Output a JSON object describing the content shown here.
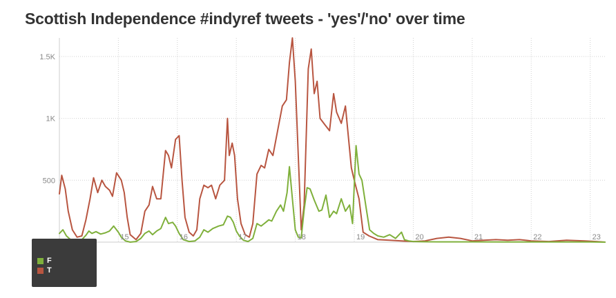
{
  "chart_data": {
    "type": "line",
    "title": "Scottish Independence #indyref tweets - 'yes'/'no' over time",
    "xlabel": "",
    "ylabel": "",
    "x_unit": "day",
    "x_range": [
      14.0,
      23.25
    ],
    "x_ticks": [
      {
        "value": 15,
        "label": "15"
      },
      {
        "value": 16,
        "label": "16"
      },
      {
        "value": 17,
        "label": "17"
      },
      {
        "value": 18,
        "label": "18"
      },
      {
        "value": 19,
        "label": "19"
      },
      {
        "value": 20,
        "label": "20"
      },
      {
        "value": 21,
        "label": "21"
      },
      {
        "value": 22,
        "label": "22"
      },
      {
        "value": 23,
        "label": "23"
      }
    ],
    "ylim": [
      0,
      1650
    ],
    "y_ticks": [
      {
        "value": 500,
        "label": "500"
      },
      {
        "value": 1000,
        "label": "1K"
      },
      {
        "value": 1500,
        "label": "1.5K"
      }
    ],
    "grid": {
      "x": true,
      "y": true,
      "style": "dotted"
    },
    "legend": {
      "placement": "bottom-left",
      "background": "#3b3b3b"
    },
    "series": [
      {
        "name": "F",
        "color": "#7fb03b",
        "points": [
          [
            14.0,
            70
          ],
          [
            14.06,
            100
          ],
          [
            14.12,
            50
          ],
          [
            14.2,
            15
          ],
          [
            14.3,
            5
          ],
          [
            14.38,
            20
          ],
          [
            14.45,
            55
          ],
          [
            14.5,
            90
          ],
          [
            14.55,
            70
          ],
          [
            14.62,
            85
          ],
          [
            14.7,
            65
          ],
          [
            14.78,
            75
          ],
          [
            14.85,
            90
          ],
          [
            14.92,
            130
          ],
          [
            15.0,
            80
          ],
          [
            15.05,
            40
          ],
          [
            15.12,
            10
          ],
          [
            15.2,
            0
          ],
          [
            15.3,
            5
          ],
          [
            15.38,
            30
          ],
          [
            15.45,
            70
          ],
          [
            15.52,
            90
          ],
          [
            15.58,
            60
          ],
          [
            15.65,
            90
          ],
          [
            15.72,
            110
          ],
          [
            15.8,
            200
          ],
          [
            15.85,
            150
          ],
          [
            15.92,
            160
          ],
          [
            15.97,
            130
          ],
          [
            16.03,
            70
          ],
          [
            16.1,
            20
          ],
          [
            16.2,
            5
          ],
          [
            16.3,
            10
          ],
          [
            16.38,
            40
          ],
          [
            16.45,
            100
          ],
          [
            16.52,
            80
          ],
          [
            16.6,
            110
          ],
          [
            16.7,
            130
          ],
          [
            16.78,
            140
          ],
          [
            16.85,
            210
          ],
          [
            16.9,
            200
          ],
          [
            16.95,
            160
          ],
          [
            17.0,
            90
          ],
          [
            17.05,
            50
          ],
          [
            17.12,
            15
          ],
          [
            17.2,
            5
          ],
          [
            17.28,
            30
          ],
          [
            17.35,
            150
          ],
          [
            17.42,
            130
          ],
          [
            17.5,
            160
          ],
          [
            17.55,
            180
          ],
          [
            17.6,
            170
          ],
          [
            17.68,
            250
          ],
          [
            17.75,
            300
          ],
          [
            17.8,
            250
          ],
          [
            17.86,
            400
          ],
          [
            17.9,
            610
          ],
          [
            17.95,
            350
          ],
          [
            18.0,
            100
          ],
          [
            18.05,
            40
          ],
          [
            18.1,
            35
          ],
          [
            18.15,
            260
          ],
          [
            18.2,
            440
          ],
          [
            18.25,
            430
          ],
          [
            18.32,
            340
          ],
          [
            18.4,
            250
          ],
          [
            18.45,
            260
          ],
          [
            18.52,
            380
          ],
          [
            18.58,
            200
          ],
          [
            18.65,
            250
          ],
          [
            18.7,
            230
          ],
          [
            18.78,
            350
          ],
          [
            18.85,
            250
          ],
          [
            18.92,
            300
          ],
          [
            18.97,
            150
          ],
          [
            19.03,
            780
          ],
          [
            19.08,
            550
          ],
          [
            19.13,
            500
          ],
          [
            19.2,
            280
          ],
          [
            19.26,
            100
          ],
          [
            19.33,
            70
          ],
          [
            19.4,
            50
          ],
          [
            19.5,
            40
          ],
          [
            19.6,
            60
          ],
          [
            19.7,
            30
          ],
          [
            19.8,
            80
          ],
          [
            19.85,
            20
          ],
          [
            19.92,
            10
          ],
          [
            20.0,
            5
          ],
          [
            20.2,
            3
          ],
          [
            20.5,
            2
          ],
          [
            21.0,
            2
          ],
          [
            21.5,
            1
          ],
          [
            22.0,
            1
          ],
          [
            22.5,
            1
          ],
          [
            23.0,
            1
          ],
          [
            23.25,
            0
          ]
        ]
      },
      {
        "name": "T",
        "color": "#b85540",
        "points": [
          [
            14.0,
            390
          ],
          [
            14.04,
            540
          ],
          [
            14.1,
            430
          ],
          [
            14.15,
            250
          ],
          [
            14.22,
            100
          ],
          [
            14.3,
            40
          ],
          [
            14.38,
            50
          ],
          [
            14.45,
            180
          ],
          [
            14.52,
            350
          ],
          [
            14.58,
            520
          ],
          [
            14.65,
            400
          ],
          [
            14.72,
            500
          ],
          [
            14.78,
            450
          ],
          [
            14.85,
            420
          ],
          [
            14.9,
            370
          ],
          [
            14.97,
            560
          ],
          [
            15.05,
            500
          ],
          [
            15.1,
            400
          ],
          [
            15.15,
            200
          ],
          [
            15.2,
            60
          ],
          [
            15.3,
            20
          ],
          [
            15.38,
            70
          ],
          [
            15.45,
            250
          ],
          [
            15.52,
            300
          ],
          [
            15.58,
            450
          ],
          [
            15.65,
            350
          ],
          [
            15.72,
            350
          ],
          [
            15.8,
            740
          ],
          [
            15.85,
            700
          ],
          [
            15.9,
            600
          ],
          [
            15.97,
            830
          ],
          [
            16.03,
            860
          ],
          [
            16.08,
            500
          ],
          [
            16.13,
            200
          ],
          [
            16.2,
            80
          ],
          [
            16.27,
            50
          ],
          [
            16.33,
            100
          ],
          [
            16.38,
            350
          ],
          [
            16.45,
            460
          ],
          [
            16.52,
            440
          ],
          [
            16.58,
            460
          ],
          [
            16.65,
            350
          ],
          [
            16.72,
            460
          ],
          [
            16.8,
            500
          ],
          [
            16.85,
            1000
          ],
          [
            16.88,
            700
          ],
          [
            16.93,
            800
          ],
          [
            16.97,
            700
          ],
          [
            17.02,
            350
          ],
          [
            17.08,
            150
          ],
          [
            17.15,
            60
          ],
          [
            17.22,
            40
          ],
          [
            17.28,
            150
          ],
          [
            17.35,
            550
          ],
          [
            17.42,
            620
          ],
          [
            17.48,
            600
          ],
          [
            17.55,
            750
          ],
          [
            17.62,
            700
          ],
          [
            17.7,
            900
          ],
          [
            17.78,
            1100
          ],
          [
            17.85,
            1150
          ],
          [
            17.9,
            1450
          ],
          [
            17.95,
            1650
          ],
          [
            18.0,
            1300
          ],
          [
            18.05,
            700
          ],
          [
            18.1,
            100
          ],
          [
            18.15,
            300
          ],
          [
            18.22,
            1400
          ],
          [
            18.27,
            1560
          ],
          [
            18.32,
            1200
          ],
          [
            18.37,
            1300
          ],
          [
            18.42,
            1000
          ],
          [
            18.5,
            950
          ],
          [
            18.58,
            900
          ],
          [
            18.65,
            1200
          ],
          [
            18.7,
            1050
          ],
          [
            18.78,
            960
          ],
          [
            18.85,
            1100
          ],
          [
            18.95,
            600
          ],
          [
            19.0,
            500
          ],
          [
            19.08,
            350
          ],
          [
            19.15,
            80
          ],
          [
            19.25,
            50
          ],
          [
            19.4,
            20
          ],
          [
            19.6,
            15
          ],
          [
            19.8,
            10
          ],
          [
            20.0,
            5
          ],
          [
            20.2,
            10
          ],
          [
            20.4,
            30
          ],
          [
            20.6,
            40
          ],
          [
            20.8,
            30
          ],
          [
            21.0,
            10
          ],
          [
            21.2,
            15
          ],
          [
            21.4,
            20
          ],
          [
            21.6,
            15
          ],
          [
            21.8,
            20
          ],
          [
            22.0,
            10
          ],
          [
            22.3,
            5
          ],
          [
            22.6,
            15
          ],
          [
            22.9,
            10
          ],
          [
            23.1,
            5
          ],
          [
            23.25,
            0
          ]
        ]
      }
    ]
  }
}
